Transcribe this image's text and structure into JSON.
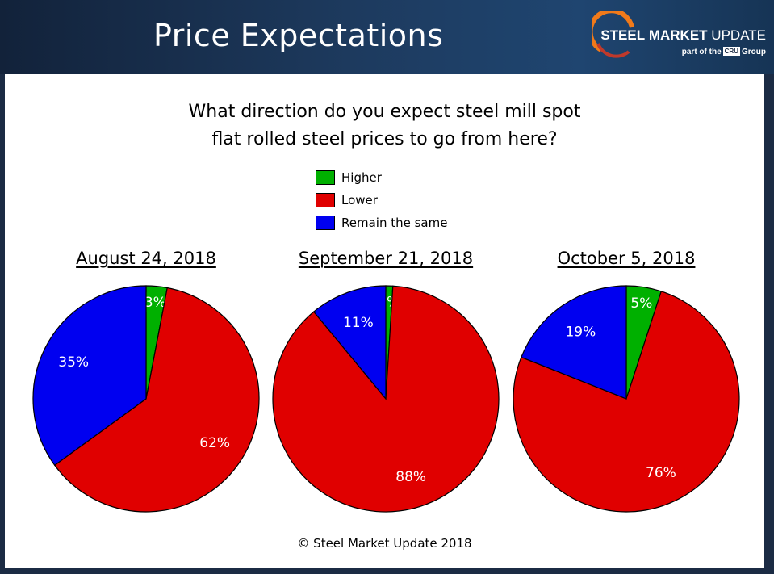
{
  "header": {
    "title": "Price Expectations"
  },
  "brand": {
    "name_bold": "STEEL",
    "name_mid": "MARKET",
    "name_end": "UPDATE",
    "sub_prefix": "part of the",
    "cru": "CRU",
    "sub_suffix": "Group"
  },
  "question": {
    "line1": "What direction do you expect steel mill spot",
    "line2": "flat rolled steel prices to go from here?"
  },
  "legend": [
    {
      "label": "Higher",
      "color": "#00b000"
    },
    {
      "label": "Lower",
      "color": "#e00000"
    },
    {
      "label": "Remain the same",
      "color": "#0000f0"
    }
  ],
  "chart_data": [
    {
      "type": "pie",
      "title": "August 24, 2018",
      "categories": [
        "Higher",
        "Lower",
        "Remain the same"
      ],
      "values": [
        3,
        62,
        35
      ],
      "labels": [
        "3%",
        "62%",
        "35%"
      ],
      "colors": [
        "#00b000",
        "#e00000",
        "#0000f0"
      ]
    },
    {
      "type": "pie",
      "title": "September 21, 2018",
      "categories": [
        "Higher",
        "Lower",
        "Remain the same"
      ],
      "values": [
        1,
        88,
        11
      ],
      "labels": [
        "1%",
        "88%",
        "11%"
      ],
      "colors": [
        "#00b000",
        "#e00000",
        "#0000f0"
      ]
    },
    {
      "type": "pie",
      "title": "October 5, 2018",
      "categories": [
        "Higher",
        "Lower",
        "Remain the same"
      ],
      "values": [
        5,
        76,
        19
      ],
      "labels": [
        "5%",
        "76%",
        "19%"
      ],
      "colors": [
        "#00b000",
        "#e00000",
        "#0000f0"
      ]
    }
  ],
  "footer": "© Steel Market Update 2018"
}
